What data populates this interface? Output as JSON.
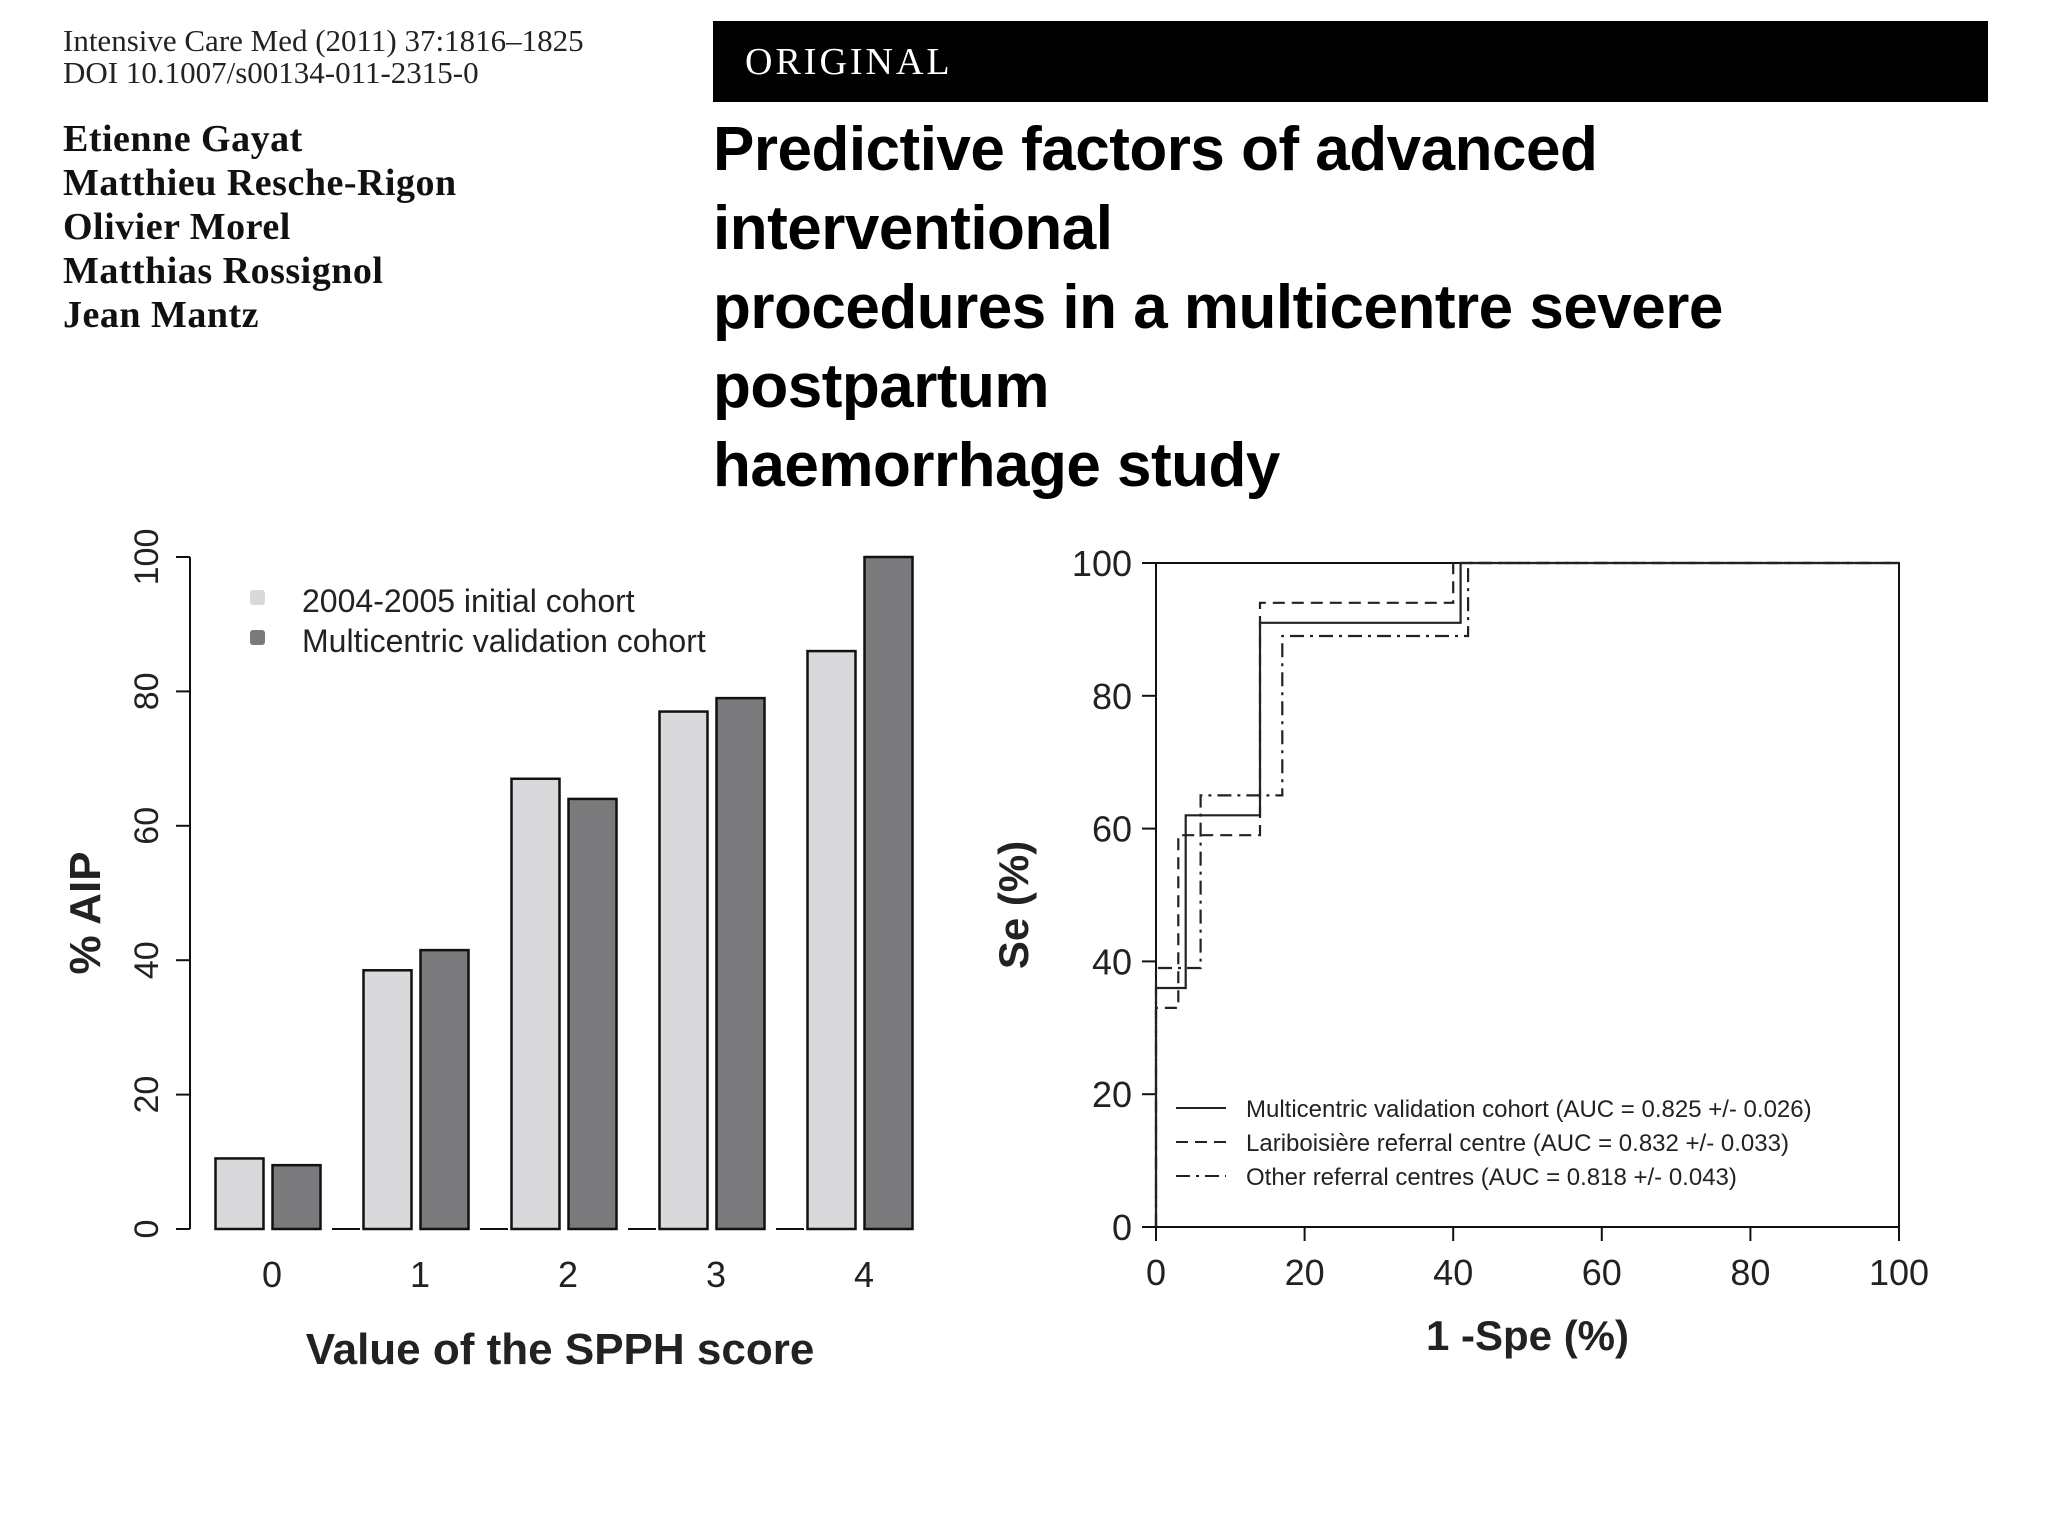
{
  "header": {
    "journal_citation": "Intensive Care Med (2011) 37:1816–1825",
    "doi": "DOI 10.1007/s00134-011-2315-0",
    "section_label": "ORIGINAL",
    "title_lines": [
      "Predictive factors of advanced interventional",
      "procedures in a multicentre severe postpartum",
      "haemorrhage study"
    ]
  },
  "authors": [
    "Etienne Gayat",
    "Matthieu Resche-Rigon",
    "Olivier Morel",
    "Matthias Rossignol",
    "Jean Mantz"
  ],
  "colors": {
    "light_bar": "#d9d9dc",
    "dark_bar": "#7a7a7c",
    "axis": "#111111",
    "section_bar": "#000000"
  },
  "chart_data": [
    {
      "type": "bar",
      "categories": [
        "0",
        "1",
        "2",
        "3",
        "4"
      ],
      "series": [
        {
          "name": "2004-2005 initial cohort",
          "values": [
            10.5,
            38.5,
            67,
            77,
            86
          ]
        },
        {
          "name": "Multicentric validation cohort",
          "values": [
            9.5,
            41.5,
            64,
            79,
            100
          ]
        }
      ],
      "xlabel": "Value of the SPPH score",
      "ylabel": "% AIP",
      "ylim": [
        0,
        100
      ],
      "yticks": [
        "0",
        "20",
        "40",
        "60",
        "80",
        "100"
      ],
      "legend_position": "top-left",
      "grid": false
    },
    {
      "type": "line",
      "xlabel": "1 -Spe (%)",
      "ylabel": "Se (%)",
      "xlim": [
        0,
        100
      ],
      "ylim": [
        0,
        100
      ],
      "xticks": [
        "0",
        "20",
        "40",
        "60",
        "80",
        "100"
      ],
      "yticks": [
        "0",
        "20",
        "40",
        "60",
        "80",
        "100"
      ],
      "legend_position": "bottom-left",
      "grid": false,
      "series": [
        {
          "name": "Multicentric validation cohort (AUC = 0.825 +/- 0.026)",
          "style": "solid",
          "points": [
            [
              0,
              0
            ],
            [
              0,
              36
            ],
            [
              4,
              36
            ],
            [
              4,
              62
            ],
            [
              14,
              62
            ],
            [
              14,
              91
            ],
            [
              41,
              91
            ],
            [
              41,
              100
            ],
            [
              100,
              100
            ]
          ]
        },
        {
          "name": "Lariboisière referral centre (AUC = 0.832 +/- 0.033)",
          "style": "dashed",
          "points": [
            [
              0,
              0
            ],
            [
              0,
              33
            ],
            [
              3,
              33
            ],
            [
              3,
              59
            ],
            [
              14,
              59
            ],
            [
              14,
              94
            ],
            [
              40,
              94
            ],
            [
              40,
              100
            ],
            [
              100,
              100
            ]
          ]
        },
        {
          "name": "Other referral centres (AUC = 0.818 +/- 0.043)",
          "style": "dashdot",
          "points": [
            [
              0,
              0
            ],
            [
              0,
              39
            ],
            [
              6,
              39
            ],
            [
              6,
              65
            ],
            [
              17,
              65
            ],
            [
              17,
              89
            ],
            [
              42,
              89
            ],
            [
              42,
              100
            ],
            [
              100,
              100
            ]
          ]
        }
      ]
    }
  ]
}
